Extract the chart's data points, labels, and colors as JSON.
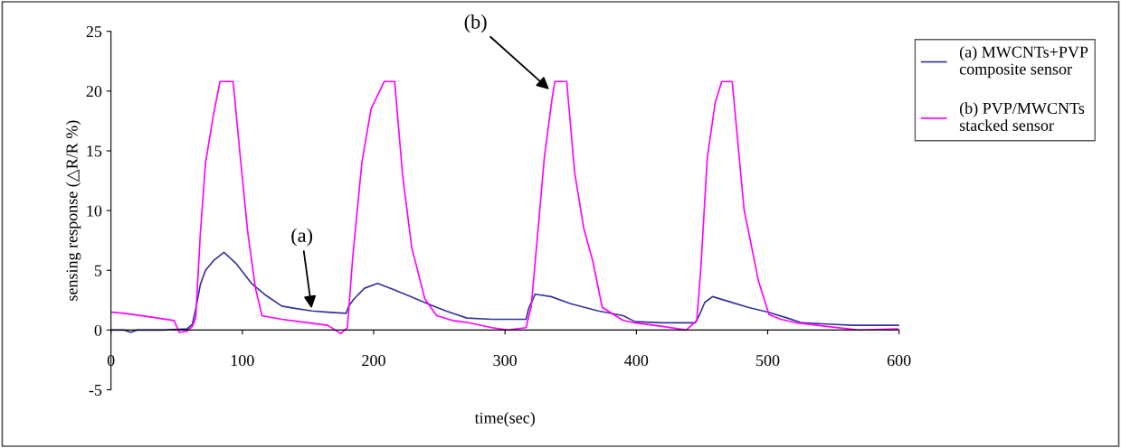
{
  "chart_data": {
    "type": "line",
    "xlabel": "time(sec)",
    "ylabel": "sensing response (△R/R %)",
    "xlim": [
      0,
      600
    ],
    "xticks": [
      0,
      100,
      200,
      300,
      400,
      500,
      600
    ],
    "ylim": [
      -5,
      25
    ],
    "yticks": [
      -5,
      0,
      5,
      10,
      15,
      20,
      25
    ],
    "grid": false,
    "legend": "right",
    "marker": "none",
    "line_style": "solid",
    "series": [
      {
        "name": "(a) MWCNTs+PVP\ncomposite sensor",
        "color": "#333399",
        "x": [
          0,
          10,
          15,
          20,
          40,
          58,
          62,
          65,
          68,
          72,
          78,
          86,
          95,
          107,
          118,
          130,
          141,
          153,
          165,
          179,
          181,
          185,
          193,
          203,
          215,
          228,
          241,
          255,
          271,
          290,
          305,
          316,
          318,
          323,
          335,
          350,
          371,
          390,
          399,
          420,
          445,
          449,
          452,
          458,
          470,
          485,
          500,
          515,
          526,
          545,
          565,
          585,
          600
        ],
        "values": [
          0,
          0,
          -0.2,
          0,
          0,
          0.1,
          0.5,
          2.0,
          3.8,
          5.0,
          5.8,
          6.5,
          5.6,
          3.9,
          2.9,
          2.0,
          1.8,
          1.6,
          1.5,
          1.4,
          2.0,
          2.6,
          3.5,
          3.9,
          3.4,
          2.8,
          2.2,
          1.6,
          1.0,
          0.9,
          0.9,
          0.9,
          1.8,
          3.0,
          2.8,
          2.2,
          1.6,
          1.2,
          0.7,
          0.6,
          0.6,
          1.5,
          2.3,
          2.8,
          2.4,
          1.9,
          1.5,
          1.0,
          0.6,
          0.5,
          0.4,
          0.4,
          0.4
        ]
      },
      {
        "name": "(b) PVP/MWCNTs\nstacked sensor",
        "color": "#ff00ff",
        "x": [
          0,
          10,
          30,
          48,
          52,
          58,
          62,
          64.5,
          68,
          72,
          78,
          83,
          93,
          98,
          104,
          110,
          115,
          130,
          150,
          165,
          175,
          180,
          184,
          191,
          198,
          208,
          216,
          222,
          229,
          239,
          248,
          260,
          273,
          290,
          302,
          316,
          320,
          325,
          330,
          336,
          338,
          347,
          353,
          360,
          367,
          374,
          390,
          399,
          420,
          438,
          446,
          449,
          454,
          460,
          465,
          473,
          482,
          493,
          501,
          510,
          522,
          545,
          569,
          599
        ],
        "values": [
          1.5,
          1.4,
          1.1,
          0.8,
          -0.2,
          -0.1,
          0.3,
          1.0,
          8.0,
          14.0,
          18.0,
          20.8,
          20.8,
          15.0,
          8.3,
          3.5,
          1.2,
          0.9,
          0.6,
          0.4,
          -0.3,
          0.2,
          6.0,
          14.0,
          18.5,
          20.8,
          20.8,
          13.0,
          6.9,
          2.6,
          1.2,
          0.8,
          0.6,
          0.2,
          0,
          0.2,
          2.0,
          8.2,
          14.5,
          19.5,
          20.8,
          20.8,
          13.2,
          8.5,
          5.7,
          1.9,
          0.8,
          0.6,
          0.3,
          0,
          0.8,
          5.0,
          14.4,
          19.0,
          20.8,
          20.8,
          10.1,
          4.1,
          1.3,
          0.9,
          0.6,
          0.3,
          0,
          0.1
        ]
      }
    ],
    "annotations": [
      {
        "text": "(a)",
        "x": 153,
        "y": 1.6
      },
      {
        "text": "(b)",
        "x": 335,
        "y": 20
      }
    ]
  }
}
